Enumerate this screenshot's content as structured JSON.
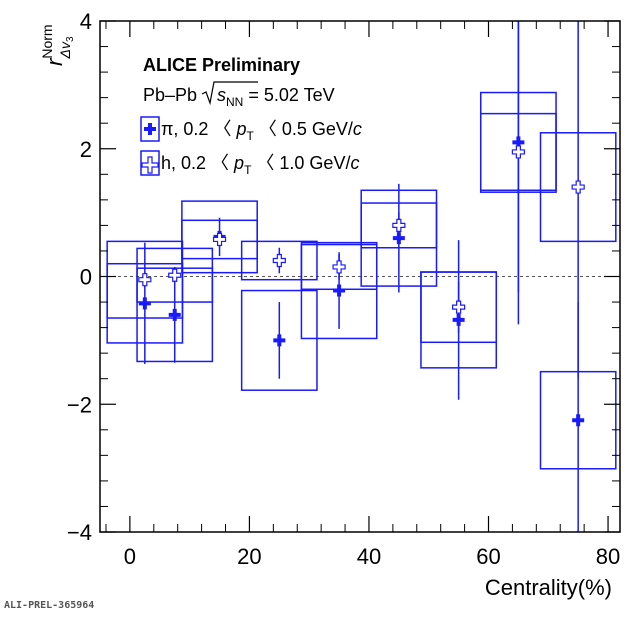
{
  "chart_data": {
    "type": "scatter",
    "title": "",
    "xlabel": "Centrality(%)",
    "ylabel": "r",
    "ylabel_sup": "Norm",
    "ylabel_sub": "Δv",
    "ylabel_sub2": "3",
    "xlim": [
      -5,
      82
    ],
    "ylim": [
      -4,
      4
    ],
    "x_ticks": [
      0,
      20,
      40,
      60,
      80
    ],
    "x_tick_labels": [
      "0",
      "20",
      "40",
      "60",
      "80"
    ],
    "y_ticks": [
      -4,
      -2,
      0,
      2,
      4
    ],
    "y_tick_labels": [
      "−4",
      "−2",
      "0",
      "2",
      "4"
    ],
    "reference_line": 0,
    "grid": false,
    "legend_position": "top-left",
    "series": [
      {
        "name": "π",
        "marker": "filled-cross",
        "x": [
          2.5,
          7.5,
          15,
          25,
          35,
          45,
          55,
          65,
          75
        ],
        "y": [
          -0.42,
          -0.6,
          0.62,
          -1.0,
          -0.22,
          0.6,
          -0.68,
          2.1,
          -2.25
        ],
        "stat_err": [
          0.95,
          0.75,
          0.3,
          0.6,
          0.6,
          0.85,
          1.25,
          2.85,
          1.85
        ],
        "sys_err": [
          0.62,
          0.73,
          0.56,
          0.78,
          0.75,
          0.75,
          0.75,
          0.78,
          0.76
        ]
      },
      {
        "name": "h",
        "marker": "open-cross",
        "x": [
          2.5,
          7.5,
          15,
          25,
          35,
          45,
          55,
          65,
          75
        ],
        "y": [
          -0.05,
          0.02,
          0.58,
          0.25,
          0.15,
          0.8,
          -0.48,
          1.95,
          1.4
        ],
        "stat_err": [
          0.12,
          0.12,
          0.12,
          0.2,
          0.2,
          0.2,
          0.4,
          2.2,
          3.0
        ],
        "sys_err": [
          0.6,
          0.42,
          0.3,
          0.3,
          0.35,
          0.35,
          0.55,
          0.6,
          0.85
        ]
      }
    ],
    "colors": {
      "series": "#1a1aff",
      "reference_line": "#555555"
    }
  },
  "legend": {
    "header": "ALICE Preliminary",
    "system_prefix": "Pb–Pb ",
    "system_s": "s",
    "system_s_sub": "NN",
    "system_suffix": " = 5.02 TeV",
    "pi_prefix": "π, 0.2 〈 ",
    "h_prefix": "h, 0.2 〈 ",
    "pt_p": "p",
    "pt_sub": "T",
    "pi_range": " 〈 0.5 GeV/",
    "h_range": " 〈 1.0 GeV/",
    "c": "c"
  },
  "footer": "ALI-PREL-365964"
}
